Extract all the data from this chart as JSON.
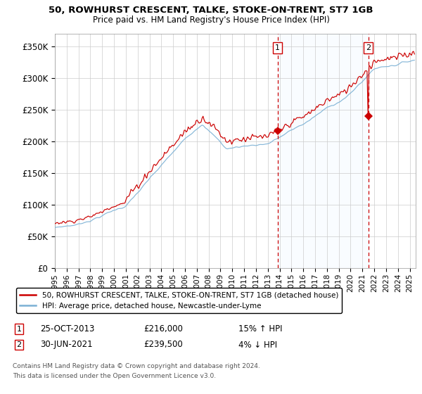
{
  "title1": "50, ROWHURST CRESCENT, TALKE, STOKE-ON-TRENT, ST7 1GB",
  "title2": "Price paid vs. HM Land Registry's House Price Index (HPI)",
  "ylabel_ticks": [
    "£0",
    "£50K",
    "£100K",
    "£150K",
    "£200K",
    "£250K",
    "£300K",
    "£350K"
  ],
  "ytick_vals": [
    0,
    50000,
    100000,
    150000,
    200000,
    250000,
    300000,
    350000
  ],
  "ylim": [
    0,
    370000
  ],
  "xlim_start": 1995.0,
  "xlim_end": 2025.5,
  "legend_line1": "50, ROWHURST CRESCENT, TALKE, STOKE-ON-TRENT, ST7 1GB (detached house)",
  "legend_line2": "HPI: Average price, detached house, Newcastle-under-Lyme",
  "sale1_date": "25-OCT-2013",
  "sale1_price": "£216,000",
  "sale1_hpi": "15% ↑ HPI",
  "sale1_x": 2013.82,
  "sale1_y": 216000,
  "sale2_date": "30-JUN-2021",
  "sale2_price": "£239,500",
  "sale2_hpi": "4% ↓ HPI",
  "sale2_x": 2021.5,
  "sale2_y": 239500,
  "line_color_red": "#cc0000",
  "line_color_blue": "#7ab0d4",
  "shade_color": "#ddeeff",
  "vline_color": "#cc0000",
  "marker_label_color": "#cc0000",
  "footnote1": "Contains HM Land Registry data © Crown copyright and database right 2024.",
  "footnote2": "This data is licensed under the Open Government Licence v3.0.",
  "xtick_years": [
    1995,
    1996,
    1997,
    1998,
    1999,
    2000,
    2001,
    2002,
    2003,
    2004,
    2005,
    2006,
    2007,
    2008,
    2009,
    2010,
    2011,
    2012,
    2013,
    2014,
    2015,
    2016,
    2017,
    2018,
    2019,
    2020,
    2021,
    2022,
    2023,
    2024,
    2025
  ],
  "hpi_base": 63000,
  "prop_base": 70000
}
